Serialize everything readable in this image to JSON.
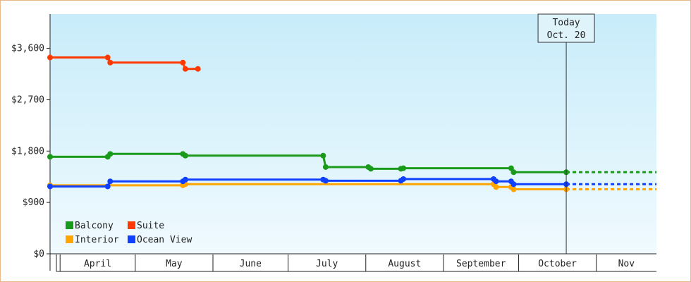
{
  "chart_data": {
    "type": "line",
    "title": "",
    "xlabel": "",
    "ylabel": "",
    "ylim": [
      0,
      4200
    ],
    "yticks": [
      {
        "value": 0,
        "label": "$0"
      },
      {
        "value": 900,
        "label": "$900"
      },
      {
        "value": 1800,
        "label": "$1,800"
      },
      {
        "value": 2700,
        "label": "$2,700"
      },
      {
        "value": 3600,
        "label": "$3,600"
      }
    ],
    "xlim": [
      "2023-03-28",
      "2023-11-25"
    ],
    "month_boundaries": [
      "2023-04-01",
      "2023-05-01",
      "2023-06-01",
      "2023-07-01",
      "2023-08-01",
      "2023-09-01",
      "2023-10-01",
      "2023-11-01"
    ],
    "months": [
      {
        "label": "April",
        "start": "2023-04-01",
        "end": "2023-05-01"
      },
      {
        "label": "May",
        "start": "2023-05-01",
        "end": "2023-06-01"
      },
      {
        "label": "June",
        "start": "2023-06-01",
        "end": "2023-07-01"
      },
      {
        "label": "July",
        "start": "2023-07-01",
        "end": "2023-08-01"
      },
      {
        "label": "August",
        "start": "2023-08-01",
        "end": "2023-09-01"
      },
      {
        "label": "September",
        "start": "2023-09-01",
        "end": "2023-10-01"
      },
      {
        "label": "October",
        "start": "2023-10-01",
        "end": "2023-11-01"
      },
      {
        "label": "Nov",
        "start": "2023-11-01",
        "end": "2023-11-25"
      }
    ],
    "today": {
      "date": "2023-10-20",
      "label_line1": "Today",
      "label_line2": "Oct. 20"
    },
    "legend": "bottom-left",
    "series": [
      {
        "name": "Balcony",
        "color": "#1a9a1a",
        "projection_end": "2023-11-25",
        "points": [
          [
            "2023-03-28",
            1700
          ],
          [
            "2023-04-20",
            1700
          ],
          [
            "2023-04-21",
            1750
          ],
          [
            "2023-05-20",
            1750
          ],
          [
            "2023-05-21",
            1720
          ],
          [
            "2023-07-15",
            1720
          ],
          [
            "2023-07-16",
            1520
          ],
          [
            "2023-08-02",
            1520
          ],
          [
            "2023-08-03",
            1490
          ],
          [
            "2023-08-15",
            1490
          ],
          [
            "2023-08-16",
            1500
          ],
          [
            "2023-09-28",
            1500
          ],
          [
            "2023-09-29",
            1430
          ],
          [
            "2023-10-20",
            1430
          ]
        ]
      },
      {
        "name": "Suite",
        "color": "#ff3a00",
        "projection_end": null,
        "points": [
          [
            "2023-03-28",
            3440
          ],
          [
            "2023-04-20",
            3440
          ],
          [
            "2023-04-21",
            3350
          ],
          [
            "2023-05-20",
            3350
          ],
          [
            "2023-05-21",
            3240
          ],
          [
            "2023-05-26",
            3240
          ]
        ]
      },
      {
        "name": "Interior",
        "color": "#ffa500",
        "projection_end": "2023-11-25",
        "points": [
          [
            "2023-03-28",
            1200
          ],
          [
            "2023-05-20",
            1200
          ],
          [
            "2023-05-21",
            1220
          ],
          [
            "2023-09-21",
            1220
          ],
          [
            "2023-09-22",
            1170
          ],
          [
            "2023-09-28",
            1170
          ],
          [
            "2023-09-29",
            1130
          ],
          [
            "2023-10-20",
            1130
          ]
        ]
      },
      {
        "name": "Ocean View",
        "color": "#1040ff",
        "projection_end": "2023-11-25",
        "points": [
          [
            "2023-03-28",
            1180
          ],
          [
            "2023-04-20",
            1180
          ],
          [
            "2023-04-21",
            1270
          ],
          [
            "2023-05-20",
            1270
          ],
          [
            "2023-05-21",
            1300
          ],
          [
            "2023-07-15",
            1300
          ],
          [
            "2023-07-16",
            1280
          ],
          [
            "2023-08-15",
            1280
          ],
          [
            "2023-08-16",
            1310
          ],
          [
            "2023-09-21",
            1310
          ],
          [
            "2023-09-22",
            1270
          ],
          [
            "2023-09-28",
            1270
          ],
          [
            "2023-09-29",
            1220
          ],
          [
            "2023-10-20",
            1220
          ]
        ]
      }
    ]
  }
}
